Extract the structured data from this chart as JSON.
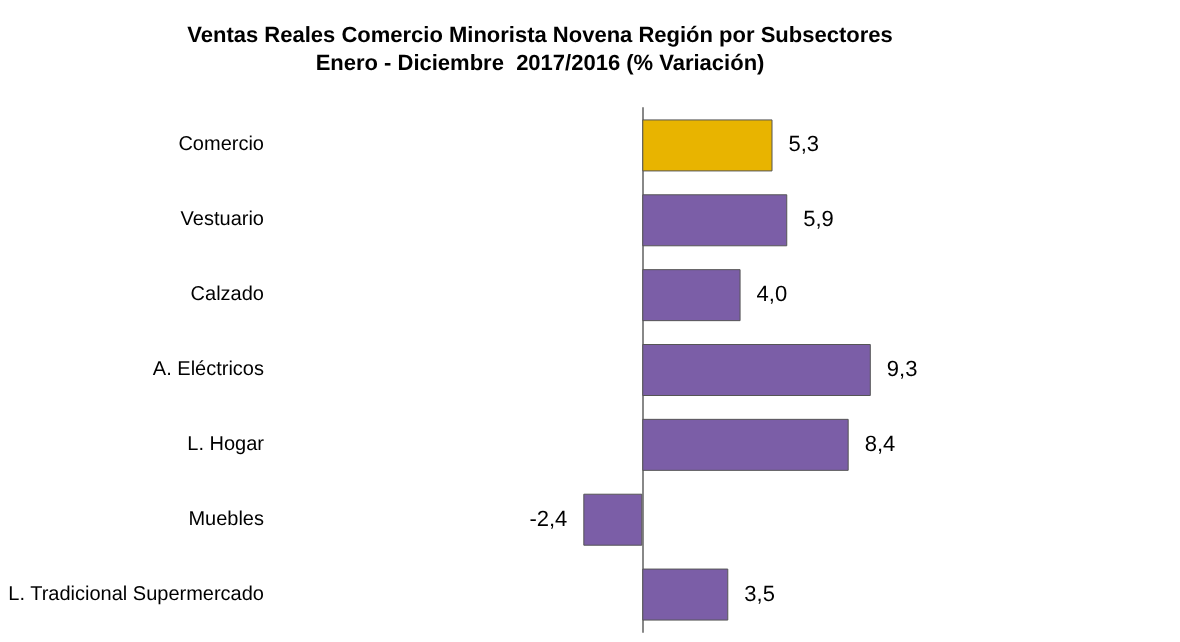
{
  "chart_data": {
    "type": "bar",
    "orientation": "horizontal",
    "title": "Ventas Reales Comercio Minorista Novena Región por Subsectores\nEnero - Diciembre  2017/2016 (% Variación)",
    "categories": [
      "Comercio",
      "Vestuario",
      "Calzado",
      "A. Eléctricos",
      "L. Hogar",
      "Muebles",
      "L. Tradicional Supermercado"
    ],
    "values": [
      5.3,
      5.9,
      4.0,
      9.3,
      8.4,
      -2.4,
      3.5
    ],
    "value_labels": [
      "5,3",
      "5,9",
      "4,0",
      "9,3",
      "8,4",
      "-2,4",
      "3,5"
    ],
    "colors": [
      "#e8b400",
      "#7b5ea7",
      "#7b5ea7",
      "#7b5ea7",
      "#7b5ea7",
      "#7b5ea7",
      "#7b5ea7"
    ],
    "tick_labels": "y",
    "grid": false
  }
}
